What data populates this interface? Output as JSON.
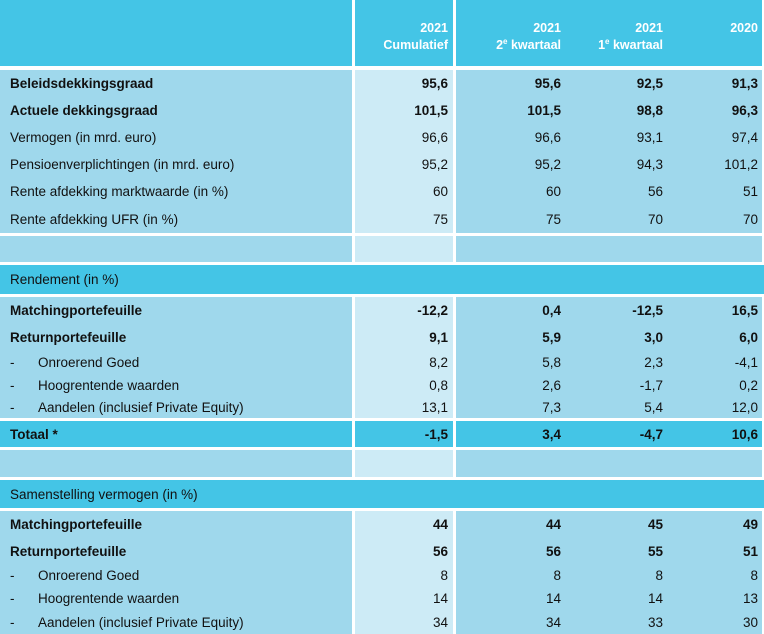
{
  "header": {
    "columns": [
      {
        "year": "2021",
        "sub_pre": "",
        "sup": "",
        "sub_post": "Cumulatief"
      },
      {
        "year": "2021",
        "sub_pre": "2",
        "sup": "e",
        "sub_post": " kwartaal"
      },
      {
        "year": "2021",
        "sub_pre": "1",
        "sup": "e",
        "sub_post": " kwartaal"
      },
      {
        "year": "2020",
        "sub_pre": "",
        "sup": "",
        "sub_post": ""
      }
    ]
  },
  "block1": [
    {
      "label": "Beleidsdekkingsgraad",
      "v": [
        "95,6",
        "95,6",
        "92,5",
        "91,3"
      ]
    },
    {
      "label": "Actuele dekkingsgraad",
      "v": [
        "101,5",
        "101,5",
        "98,8",
        "96,3"
      ]
    },
    {
      "label": "Vermogen (in mrd. euro)",
      "v": [
        "96,6",
        "96,6",
        "93,1",
        "97,4"
      ]
    },
    {
      "label": "Pensioenverplichtingen  (in mrd. euro)",
      "v": [
        "95,2",
        "95,2",
        "94,3",
        "101,2"
      ]
    },
    {
      "label": "Rente afdekking marktwaarde (in %)",
      "v": [
        "60",
        "60",
        "56",
        "51"
      ]
    },
    {
      "label": "Rente afdekking UFR (in %)",
      "v": [
        "75",
        "75",
        "70",
        "70"
      ]
    }
  ],
  "section_rendement": "Rendement (in %)",
  "block2": [
    {
      "label": "Matchingportefeuille",
      "v": [
        "-12,2",
        "0,4",
        "-12,5",
        "16,5"
      ]
    },
    {
      "label": "Returnportefeuille",
      "v": [
        "9,1",
        "5,9",
        "3,0",
        "6,0"
      ]
    },
    {
      "dash": "-",
      "label": "Onroerend Goed",
      "v": [
        "8,2",
        "5,8",
        "2,3",
        "-4,1"
      ]
    },
    {
      "dash": "-",
      "label": "Hoogrentende waarden",
      "v": [
        "0,8",
        "2,6",
        "-1,7",
        "0,2"
      ]
    },
    {
      "dash": "-",
      "label": "Aandelen (inclusief Private Equity)",
      "v": [
        "13,1",
        "7,3",
        "5,4",
        "12,0"
      ]
    }
  ],
  "totaal": {
    "label": "Totaal *",
    "v": [
      "-1,5",
      "3,4",
      "-4,7",
      "10,6"
    ]
  },
  "section_samenstelling": "Samenstelling vermogen (in %)",
  "block3": [
    {
      "label": "Matchingportefeuille",
      "v": [
        "44",
        "44",
        "45",
        "49"
      ]
    },
    {
      "label": "Returnportefeuille",
      "v": [
        "56",
        "56",
        "55",
        "51"
      ]
    },
    {
      "dash": "-",
      "label": "Onroerend Goed",
      "v": [
        "8",
        "8",
        "8",
        "8"
      ]
    },
    {
      "dash": "-",
      "label": "Hoogrentende waarden",
      "v": [
        "14",
        "14",
        "14",
        "13"
      ]
    },
    {
      "dash": "-",
      "label": "Aandelen (inclusief Private Equity)",
      "v": [
        "34",
        "34",
        "33",
        "30"
      ]
    }
  ]
}
